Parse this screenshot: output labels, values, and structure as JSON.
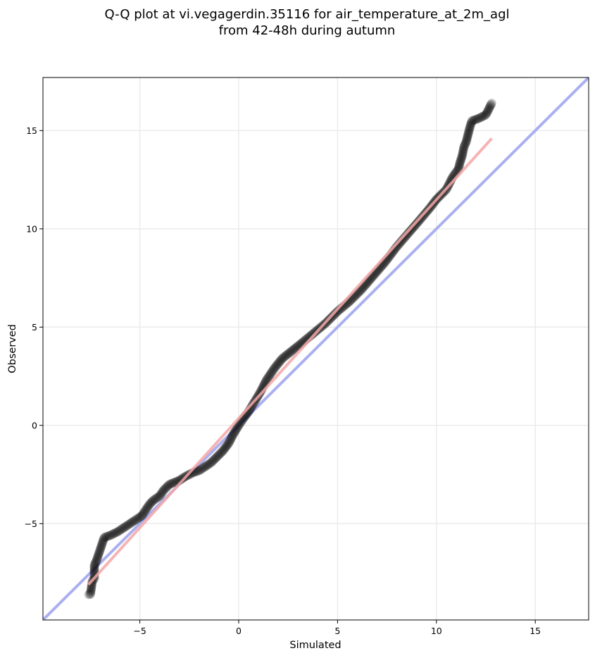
{
  "chart_data": {
    "type": "scatter",
    "title_line1": "Q-Q plot at vi.vegagerdin.35116 for air_temperature_at_2m_agl",
    "title_line2": "from 42-48h during autumn",
    "xlabel": "Simulated",
    "ylabel": "Observed",
    "xlim": [
      -9.9,
      17.7
    ],
    "ylim": [
      -9.9,
      17.7
    ],
    "xticks": [
      -5,
      0,
      5,
      10,
      15
    ],
    "yticks": [
      -5,
      0,
      5,
      10,
      15
    ],
    "xtick_labels": [
      "−5",
      "0",
      "5",
      "10",
      "15"
    ],
    "ytick_labels": [
      "−5",
      "0",
      "5",
      "10",
      "15"
    ],
    "grid": true,
    "reference_line": {
      "x": [
        -9.9,
        17.7
      ],
      "y": [
        -9.9,
        17.7
      ],
      "color": "#aab0f0"
    },
    "fit_line": {
      "x": [
        -7.6,
        12.8
      ],
      "y": [
        -8.1,
        14.6
      ],
      "color": "#f4a7a7"
    },
    "points": {
      "color": "#000000",
      "x": [
        -7.6,
        -7.5,
        -7.4,
        -7.3,
        -7.3,
        -7.2,
        -7.1,
        -6.8,
        -6.5,
        -6.1,
        -5.8,
        -5.5,
        -5.2,
        -4.9,
        -4.7,
        -4.5,
        -4.3,
        -4.0,
        -3.8,
        -3.5,
        -3.0,
        -2.7,
        -2.5,
        -2.3,
        -2.0,
        -1.7,
        -1.4,
        -1.1,
        -0.8,
        -0.5,
        -0.3,
        0.0,
        0.2,
        0.5,
        0.8,
        1.1,
        1.4,
        1.8,
        2.2,
        2.7,
        3.2,
        3.8,
        4.4,
        5.0,
        5.6,
        6.2,
        6.8,
        7.4,
        8.0,
        8.6,
        9.2,
        9.7,
        10.0,
        10.2,
        10.4,
        10.5,
        10.6,
        10.8,
        11.0,
        11.1,
        11.2,
        11.3,
        11.4,
        11.5,
        11.6,
        11.7,
        11.8,
        12.1,
        12.5,
        12.8
      ],
      "y": [
        -8.6,
        -8.6,
        -7.9,
        -7.8,
        -7.1,
        -6.9,
        -6.6,
        -5.7,
        -5.6,
        -5.4,
        -5.2,
        -5.0,
        -4.8,
        -4.6,
        -4.3,
        -4.0,
        -3.8,
        -3.6,
        -3.3,
        -3.0,
        -2.8,
        -2.6,
        -2.5,
        -2.4,
        -2.3,
        -2.1,
        -1.9,
        -1.6,
        -1.3,
        -0.9,
        -0.5,
        0.0,
        0.3,
        0.7,
        1.2,
        1.7,
        2.3,
        2.9,
        3.4,
        3.8,
        4.2,
        4.7,
        5.2,
        5.8,
        6.3,
        6.9,
        7.6,
        8.3,
        9.1,
        9.8,
        10.5,
        11.1,
        11.5,
        11.7,
        11.9,
        12.0,
        12.2,
        12.6,
        12.9,
        13.0,
        13.4,
        13.7,
        14.2,
        14.4,
        14.8,
        15.2,
        15.5,
        15.6,
        15.8,
        16.4
      ]
    }
  }
}
